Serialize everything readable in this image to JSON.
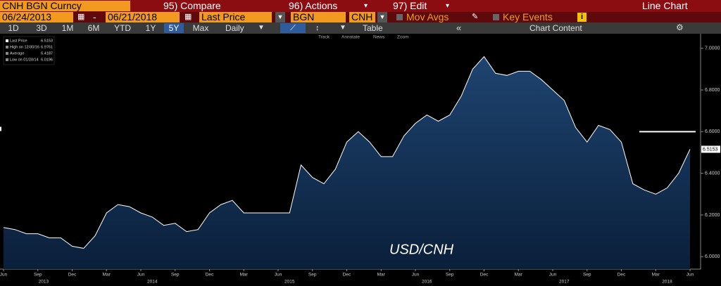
{
  "toolbar": {
    "security": "CNH BGN Curncy",
    "compare": "95) Compare",
    "actions": "96) Actions",
    "edit": "97) Edit",
    "chart_type": "Line Chart",
    "start_date": "06/24/2013",
    "end_date": "06/21/2018",
    "field": "Last Price",
    "source": "BGN",
    "currency": "CNH",
    "mov_avgs": "Mov Avgs",
    "key_events": "Key Events"
  },
  "periods": [
    "1D",
    "3D",
    "1M",
    "6M",
    "YTD",
    "1Y",
    "5Y",
    "Max"
  ],
  "selected_period": "5Y",
  "frequency": "Daily",
  "table": "Table",
  "chart_content": "Chart Content",
  "tools": [
    "Track",
    "Annotate",
    "News",
    "Zoom"
  ],
  "legend": [
    {
      "label": "Last Price",
      "value": 6.5153
    },
    {
      "label": "High on 12/30/16",
      "value": 6.9761
    },
    {
      "label": "Average",
      "value": 6.4187
    },
    {
      "label": "Low on 01/20/14",
      "value": 6.0196
    }
  ],
  "chart_data": {
    "type": "line",
    "x": [
      "2013-06",
      "2013-07",
      "2013-08",
      "2013-09",
      "2013-10",
      "2013-11",
      "2013-12",
      "2014-01",
      "2014-02",
      "2014-03",
      "2014-04",
      "2014-05",
      "2014-06",
      "2014-07",
      "2014-08",
      "2014-09",
      "2014-10",
      "2014-11",
      "2014-12",
      "2015-01",
      "2015-02",
      "2015-03",
      "2015-04",
      "2015-05",
      "2015-06",
      "2015-07",
      "2015-08",
      "2015-09",
      "2015-10",
      "2015-11",
      "2015-12",
      "2016-01",
      "2016-02",
      "2016-03",
      "2016-04",
      "2016-05",
      "2016-06",
      "2016-07",
      "2016-08",
      "2016-09",
      "2016-10",
      "2016-11",
      "2016-12",
      "2017-01",
      "2017-02",
      "2017-03",
      "2017-04",
      "2017-05",
      "2017-06",
      "2017-07",
      "2017-08",
      "2017-09",
      "2017-10",
      "2017-11",
      "2017-12",
      "2018-01",
      "2018-02",
      "2018-03",
      "2018-04",
      "2018-05",
      "2018-06"
    ],
    "series": [
      {
        "name": "USD/CNH",
        "color": "#ffffff",
        "values": [
          6.14,
          6.13,
          6.11,
          6.11,
          6.09,
          6.09,
          6.05,
          6.04,
          6.1,
          6.21,
          6.25,
          6.24,
          6.21,
          6.19,
          6.15,
          6.16,
          6.12,
          6.13,
          6.21,
          6.25,
          6.27,
          6.21,
          6.21,
          6.21,
          6.21,
          6.21,
          6.44,
          6.38,
          6.35,
          6.42,
          6.55,
          6.6,
          6.55,
          6.48,
          6.48,
          6.58,
          6.64,
          6.68,
          6.65,
          6.68,
          6.77,
          6.9,
          6.96,
          6.88,
          6.87,
          6.89,
          6.89,
          6.85,
          6.8,
          6.75,
          6.62,
          6.55,
          6.63,
          6.61,
          6.55,
          6.35,
          6.32,
          6.3,
          6.33,
          6.4,
          6.5153
        ]
      }
    ],
    "xlim": [
      "2013-06",
      "2018-06"
    ],
    "xticks": [
      {
        "value": "2013-06",
        "label": "Jun"
      },
      {
        "value": "2013-09",
        "label": "Sep"
      },
      {
        "value": "2013-12",
        "label": "Dec"
      },
      {
        "value": "2014-03",
        "label": "Mar"
      },
      {
        "value": "2014-06",
        "label": "Jun"
      },
      {
        "value": "2014-09",
        "label": "Sep"
      },
      {
        "value": "2014-12",
        "label": "Dec"
      },
      {
        "value": "2015-03",
        "label": "Mar"
      },
      {
        "value": "2015-06",
        "label": "Jun"
      },
      {
        "value": "2015-09",
        "label": "Sep"
      },
      {
        "value": "2015-12",
        "label": "Dec"
      },
      {
        "value": "2016-03",
        "label": "Mar"
      },
      {
        "value": "2016-06",
        "label": "Jun"
      },
      {
        "value": "2016-09",
        "label": "Sep"
      },
      {
        "value": "2016-12",
        "label": "Dec"
      },
      {
        "value": "2017-03",
        "label": "Mar"
      },
      {
        "value": "2017-06",
        "label": "Jun"
      },
      {
        "value": "2017-09",
        "label": "Sep"
      },
      {
        "value": "2017-12",
        "label": "Dec"
      },
      {
        "value": "2018-03",
        "label": "Mar"
      },
      {
        "value": "2018-06",
        "label": "Jun"
      }
    ],
    "x_years": [
      "2013",
      "2014",
      "2015",
      "2016",
      "2017",
      "2018"
    ],
    "ylim": [
      5.94,
      7.07
    ],
    "yticks": [
      {
        "value": 6.0,
        "label": "6.0000"
      },
      {
        "value": 6.2,
        "label": "6.2000"
      },
      {
        "value": 6.4,
        "label": "6.4000"
      },
      {
        "value": 6.6,
        "label": "6.6000"
      },
      {
        "value": 6.8,
        "label": "6.8000"
      },
      {
        "value": 7.0,
        "label": "7.0000"
      }
    ],
    "reference_line": 6.6,
    "grid": false
  }
}
